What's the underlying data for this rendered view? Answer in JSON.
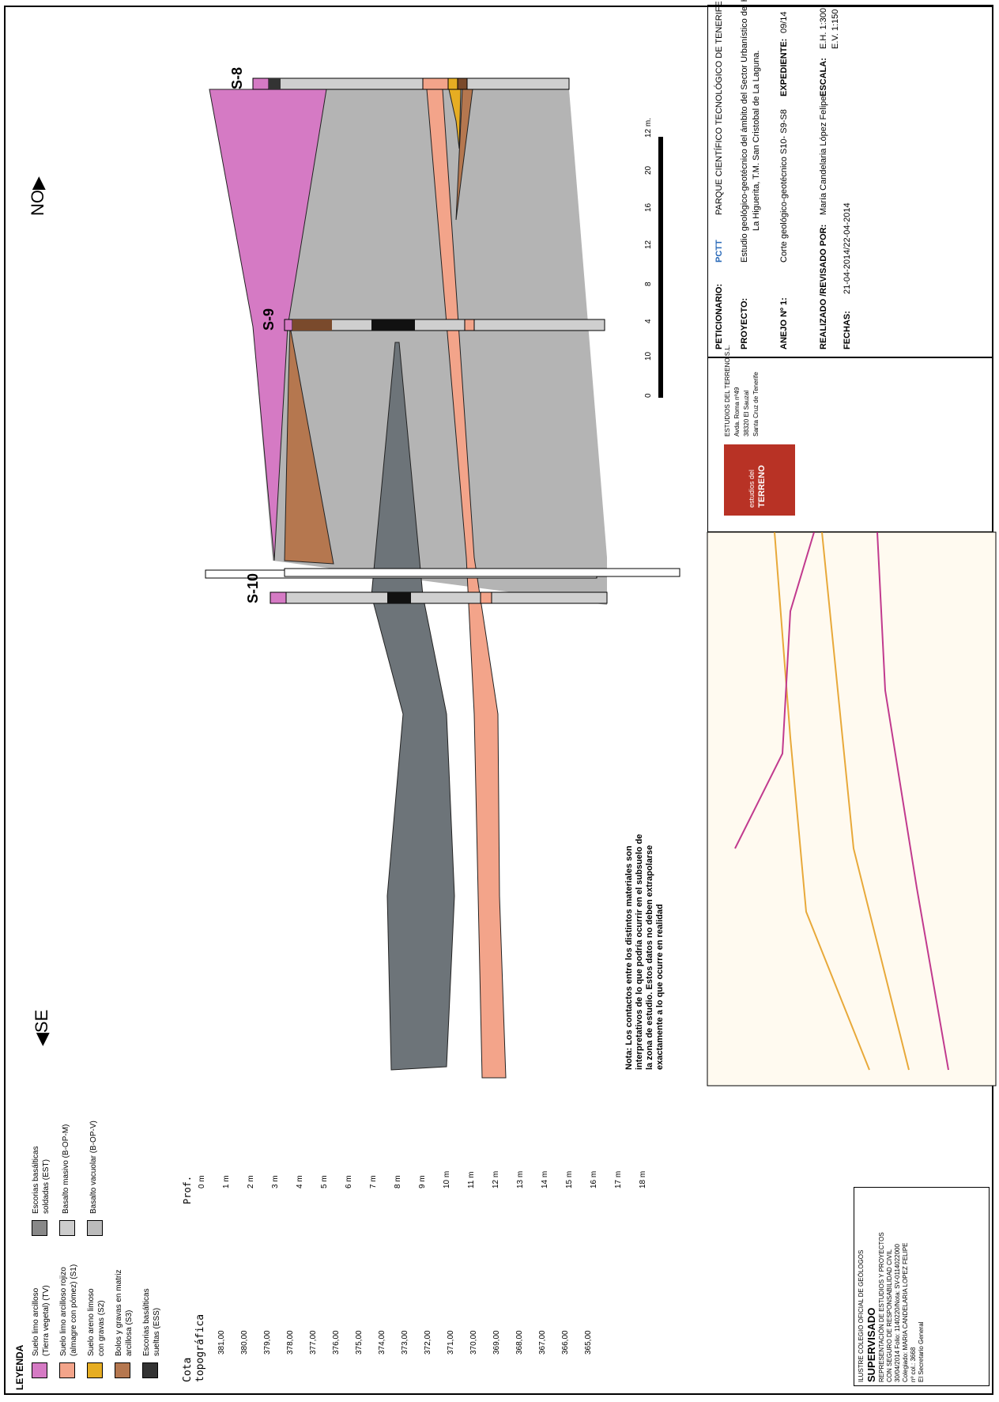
{
  "legend": {
    "title": "LEYENDA",
    "items": [
      {
        "label_1": "Suelo limo arcilloso",
        "label_2": "(Tierra vegetal) (TV)",
        "color": "#d57ac4"
      },
      {
        "label_1": "Suelo limo arcilloso rojizo",
        "label_2": "(almagre con pómez) (S1)",
        "color": "#f3a48a"
      },
      {
        "label_1": "Suelo areno limoso",
        "label_2": "con gravas (S2)",
        "color": "#e6ad22"
      },
      {
        "label_1": "Bolos y gravas en matriz",
        "label_2": "arcillosa (S3)",
        "color": "#b5774f"
      },
      {
        "label_1": "Escorias basálticas",
        "label_2": "sueltas (ESS)",
        "color": "#333333"
      },
      {
        "label_1": "Escorias basálticas",
        "label_2": "soldadas (EST)",
        "color": "#888888"
      },
      {
        "label_1": "Basalto masivo (B-OP-M)",
        "label_2": "",
        "color": "#cccccc"
      },
      {
        "label_1": "Basalto vacuolar (B-OP-V)",
        "label_2": "",
        "color": "#bbbbbb"
      }
    ]
  },
  "axis": {
    "cota_title_1": "Cota",
    "cota_title_2": "topográfica",
    "cota_ticks": [
      "381,00",
      "380,00",
      "379,00",
      "378,00",
      "377,00",
      "376,00",
      "375,00",
      "374,00",
      "373,00",
      "372,00",
      "371,00",
      "370,00",
      "369,00",
      "368,00",
      "367,00",
      "366,00",
      "365,00"
    ],
    "prof_title": "Prof.",
    "prof_ticks": [
      "0 m",
      "1 m",
      "2 m",
      "3 m",
      "4 m",
      "5 m",
      "6 m",
      "7 m",
      "8 m",
      "9 m",
      "10 m",
      "11 m",
      "12 m",
      "13 m",
      "14 m",
      "15 m",
      "16 m",
      "17 m",
      "18 m"
    ]
  },
  "direction": {
    "left": "SE",
    "right": "NO"
  },
  "boreholes": [
    "S-10",
    "S-9",
    "S-8"
  ],
  "scale_bar": {
    "ticks": [
      "0",
      "10",
      "4",
      "8",
      "12",
      "16",
      "20",
      "12 m."
    ]
  },
  "note": {
    "line1": "Nota: Los contactos entre los distintos materiales son",
    "line2": "interpretativos de lo que podría ocurrir en el subsuelo de",
    "line3": "la zona de estudio. Estos datos no deben extrapolarse",
    "line4": "exactamente a lo que ocurre en realidad"
  },
  "colors": {
    "tv": "#d57ac4",
    "s1": "#f3a48a",
    "s2": "#e6ad22",
    "s3": "#b5774f",
    "rock": "#b4b4b4",
    "dark": "#6d7479",
    "frame": "#000000"
  },
  "stamp": {
    "line1": "ILUSTRE COLEGIO OFICIAL DE GEÓLOGOS",
    "line2": "SUPERVISADO",
    "line3": "REPRESENTACIÓN DE ESTUDIOS Y PROYECTOS",
    "line4": "CON SEGURO DE RESPONSABILIDAD CIVIL",
    "line5": "30/04/2014 Folio: 1140220/Nota: SV-0114022000",
    "line6": "Colegiado: MARIA CANDELARIA LOPEZ FELIPE",
    "line7": "nº col.: 3668",
    "line8": "El Secretario General"
  },
  "company": {
    "logo_text_1": "estudios del",
    "logo_text_2": "TERRENO",
    "line1": "ESTUDIOS DEL TERRENO S.L.",
    "line2": "Avda. Roma nº49",
    "line3": "38320 El Sauzal",
    "line4": "Santa Cruz de Tenerife"
  },
  "title_block": {
    "peticionario_label": "PETICIONARIO:",
    "pctt_logo": "PCTT",
    "peticionario_value": "PARQUE CIENTÍFICO TECNOLÓGICO DE TENERIFE",
    "proyecto_label": "PROYECTO:",
    "proyecto_value_1": "Estudio geológico-geotécnico del ámbito del Sector Urbanístico del Hogar Gomero",
    "proyecto_value_2": "La Higuerita, T.M. San Cristobal de La Laguna.",
    "expediente_label": "EXPEDIENTE:",
    "expediente_value": "09/14",
    "anejo_label": "ANEJO Nº 1:",
    "anejo_value": "Corte geológico-geotécnico S10- S9-S8",
    "escala_label": "ESCALA:",
    "escala_h": "E.H. 1:300",
    "escala_v": "E.V. 1:150",
    "realizado_label": "REALIZADO /REVISADO POR:",
    "realizado_value": "María Candelaria López Felipe",
    "fechas_label": "FECHAS:",
    "fechas_value": "21-04-2014/22-04-2014"
  }
}
